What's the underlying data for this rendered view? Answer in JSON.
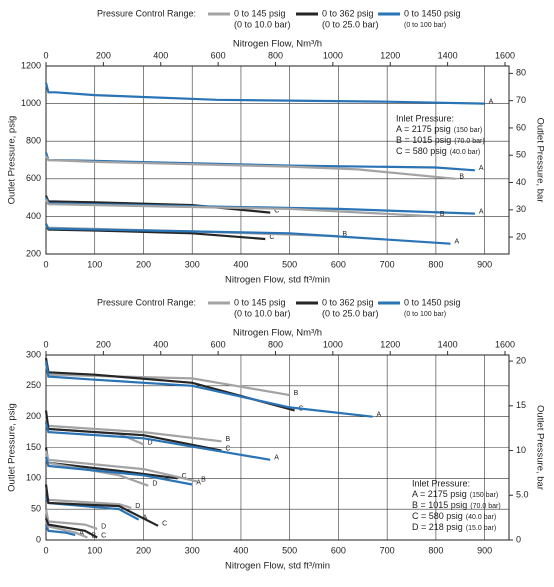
{
  "chart_data": [
    {
      "type": "line",
      "legend_title": "Pressure Control Range:",
      "series": [
        {
          "name": "0 to 145 psig",
          "note": "(0 to 10.0 bar)",
          "color": "#a3a3a3"
        },
        {
          "name": "0 to 362 psig",
          "note": "(0 to 25.0 bar)",
          "color": "#262626"
        },
        {
          "name": "0 to 1450 psig",
          "note": "(0 to 100 bar)",
          "color": "#2a74b6"
        }
      ],
      "x2_label": "Nitrogen Flow, Nm³/h",
      "x_label": "Nitrogen Flow, std ft³/min",
      "y_label": "Outlet Pressure, psig",
      "y2_label": "Outlet Pressure, bar",
      "xlim": [
        0,
        950
      ],
      "xticks": [
        0,
        100,
        200,
        300,
        400,
        500,
        600,
        700,
        800,
        900
      ],
      "x2lim": [
        0,
        1614
      ],
      "x2ticks": [
        0,
        200,
        400,
        600,
        800,
        1000,
        1200,
        1400,
        1600
      ],
      "ylim": [
        200,
        1200
      ],
      "yticks": [
        200,
        400,
        600,
        800,
        1000,
        1200
      ],
      "y2lim": [
        13.8,
        82.7
      ],
      "y2ticks": [
        20,
        30,
        40,
        50,
        60,
        70,
        80
      ],
      "grid": true,
      "curves": [
        {
          "series": 2,
          "label": "A",
          "x": [
            0,
            5,
            20,
            100,
            350,
            700,
            900
          ],
          "values": [
            1110,
            1060,
            1060,
            1045,
            1020,
            1010,
            1000
          ]
        },
        {
          "series": 2,
          "label": "A",
          "x": [
            0,
            5,
            100,
            500,
            800,
            880
          ],
          "values": [
            740,
            700,
            695,
            670,
            660,
            645
          ]
        },
        {
          "series": 0,
          "label": "B",
          "x": [
            0,
            5,
            100,
            500,
            640,
            840
          ],
          "values": [
            720,
            700,
            690,
            665,
            650,
            600
          ]
        },
        {
          "series": 1,
          "label": "C",
          "x": [
            0,
            5,
            100,
            300,
            460
          ],
          "values": [
            510,
            480,
            475,
            460,
            420
          ]
        },
        {
          "series": 2,
          "label": "A",
          "x": [
            0,
            5,
            100,
            600,
            880
          ],
          "values": [
            500,
            470,
            465,
            440,
            415
          ]
        },
        {
          "series": 0,
          "label": "B",
          "x": [
            0,
            5,
            500,
            800
          ],
          "values": [
            490,
            465,
            440,
            400
          ]
        },
        {
          "series": 1,
          "label": "C",
          "x": [
            0,
            5,
            100,
            300,
            450
          ],
          "values": [
            360,
            330,
            325,
            310,
            280
          ]
        },
        {
          "series": 0,
          "label": "B",
          "x": [
            0,
            5,
            300,
            600
          ],
          "values": [
            350,
            340,
            320,
            295
          ]
        },
        {
          "series": 2,
          "label": "A",
          "x": [
            0,
            5,
            200,
            500,
            830
          ],
          "values": [
            360,
            335,
            325,
            310,
            255
          ]
        }
      ],
      "annotation": {
        "title": "Inlet Pressure:",
        "lines": [
          {
            "text": "A = 2175 psig",
            "note": "(150 bar)"
          },
          {
            "text": "B = 1015 psig",
            "note": "(70.0 bar)"
          },
          {
            "text": "C = 580 psig",
            "note": "(40.0 bar)"
          }
        ]
      }
    },
    {
      "type": "line",
      "legend_title": "Pressure Control Range:",
      "series": [
        {
          "name": "0 to 145 psig",
          "note": "(0 to 10.0 bar)",
          "color": "#a3a3a3"
        },
        {
          "name": "0 to 362 psig",
          "note": "(0 to 25.0 bar)",
          "color": "#262626"
        },
        {
          "name": "0 to 1450 psig",
          "note": "(0 to 100 bar)",
          "color": "#2a74b6"
        }
      ],
      "x2_label": "Nitrogen Flow, Nm³/h",
      "x_label": "Nitrogen Flow, std ft³/min",
      "y_label": "Outlet Pressure, psig",
      "y2_label": "Outlet Pressure, bar",
      "xlim": [
        0,
        950
      ],
      "xticks": [
        0,
        100,
        200,
        300,
        400,
        500,
        600,
        700,
        800,
        900
      ],
      "x2lim": [
        0,
        1614
      ],
      "x2ticks": [
        0,
        200,
        400,
        600,
        800,
        1000,
        1200,
        1400,
        1600
      ],
      "ylim": [
        0,
        300
      ],
      "yticks": [
        0,
        50,
        100,
        150,
        200,
        250,
        300
      ],
      "y2lim": [
        0,
        20.68
      ],
      "y2ticks": [
        0,
        {
          "value": 5,
          "label": "5.0"
        },
        10,
        15,
        20
      ],
      "grid": true,
      "curves": [
        {
          "series": 0,
          "label": "B",
          "x": [
            0,
            5,
            300,
            500
          ],
          "values": [
            285,
            268,
            262,
            235
          ]
        },
        {
          "series": 1,
          "label": "C",
          "x": [
            0,
            5,
            100,
            300,
            510
          ],
          "values": [
            295,
            272,
            268,
            255,
            210
          ]
        },
        {
          "series": 2,
          "label": "A",
          "x": [
            0,
            5,
            100,
            300,
            500,
            670
          ],
          "values": [
            290,
            265,
            260,
            250,
            215,
            200
          ]
        },
        {
          "series": 0,
          "label": "D",
          "x": [
            0,
            5,
            150,
            200
          ],
          "values": [
            190,
            180,
            172,
            155
          ]
        },
        {
          "series": 0,
          "label": "B",
          "x": [
            0,
            5,
            200,
            360
          ],
          "values": [
            200,
            185,
            175,
            160
          ]
        },
        {
          "series": 1,
          "label": "C",
          "x": [
            0,
            5,
            200,
            360
          ],
          "values": [
            210,
            180,
            170,
            145
          ]
        },
        {
          "series": 2,
          "label": "A",
          "x": [
            0,
            5,
            200,
            460
          ],
          "values": [
            190,
            175,
            165,
            130
          ]
        },
        {
          "series": 1,
          "label": "C",
          "x": [
            0,
            5,
            150,
            270
          ],
          "values": [
            150,
            125,
            112,
            100
          ]
        },
        {
          "series": 0,
          "label": "D",
          "x": [
            0,
            5,
            150,
            210
          ],
          "values": [
            140,
            125,
            105,
            88
          ]
        },
        {
          "series": 0,
          "label": "B",
          "x": [
            0,
            5,
            200,
            310
          ],
          "values": [
            145,
            130,
            115,
            95
          ]
        },
        {
          "series": 2,
          "label": "A",
          "x": [
            0,
            5,
            200,
            300
          ],
          "values": [
            135,
            120,
            105,
            90
          ]
        },
        {
          "series": 0,
          "label": "D",
          "x": [
            0,
            5,
            150,
            175
          ],
          "values": [
            70,
            65,
            58,
            52
          ]
        },
        {
          "series": 2,
          "label": "A",
          "x": [
            0,
            5,
            150,
            190
          ],
          "values": [
            70,
            60,
            50,
            33
          ]
        },
        {
          "series": 1,
          "label": "C",
          "x": [
            0,
            5,
            150,
            230
          ],
          "values": [
            90,
            60,
            55,
            23
          ]
        },
        {
          "series": 0,
          "label": "D",
          "x": [
            0,
            5,
            80,
            105
          ],
          "values": [
            50,
            30,
            25,
            18
          ]
        },
        {
          "series": 2,
          "label": "A",
          "x": [
            0,
            5,
            40,
            60
          ],
          "values": [
            25,
            15,
            12,
            8
          ]
        },
        {
          "series": 0,
          "label": "B",
          "x": [
            0,
            5,
            60,
            85
          ],
          "values": [
            30,
            22,
            12,
            4
          ]
        },
        {
          "series": 1,
          "label": "C",
          "x": [
            0,
            5,
            80,
            105
          ],
          "values": [
            35,
            25,
            15,
            4
          ]
        }
      ],
      "annotation": {
        "title": "Inlet Pressure:",
        "lines": [
          {
            "text": "A = 2175 psig",
            "note": "(150 bar)"
          },
          {
            "text": "B = 1015 psig",
            "note": "(70.0 bar)"
          },
          {
            "text": "C = 580 psig",
            "note": "(40.0 bar)"
          },
          {
            "text": "D = 218 psig",
            "note": "(15.0 bar)"
          }
        ]
      }
    }
  ]
}
